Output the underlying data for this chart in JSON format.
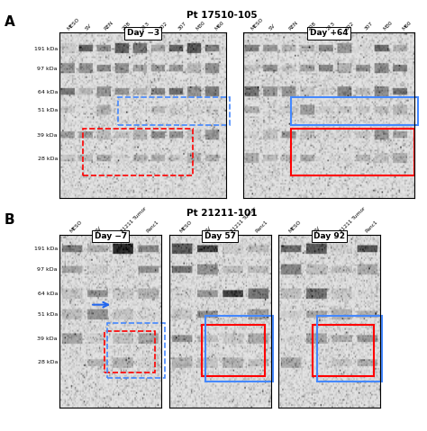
{
  "title_A": "Pt 17510-105",
  "title_B": "Pt 21211-101",
  "label_A": "A",
  "label_B": "B",
  "panel_A_labels": [
    "Day −3",
    "Day +64"
  ],
  "panel_B_labels": [
    "Day −7",
    "Day 57",
    "Day 92"
  ],
  "col_labels_A": [
    "MESO",
    "SV",
    "REN",
    "208",
    "213",
    "302",
    "307",
    "M30",
    "M60"
  ],
  "col_labels_B_panel": [
    "MESO",
    "SV",
    "21211 Tumor",
    "Panc1"
  ],
  "mw_labels": [
    "191 kDa",
    "97 kDa",
    "64 kDa",
    "51 kDa",
    "39 kDa",
    "28 kDa"
  ],
  "mw_ypos_A": [
    0.1,
    0.22,
    0.36,
    0.47,
    0.62,
    0.76
  ],
  "mw_ypos_B": [
    0.08,
    0.2,
    0.34,
    0.46,
    0.6,
    0.74
  ],
  "bg_color": "#ffffff"
}
